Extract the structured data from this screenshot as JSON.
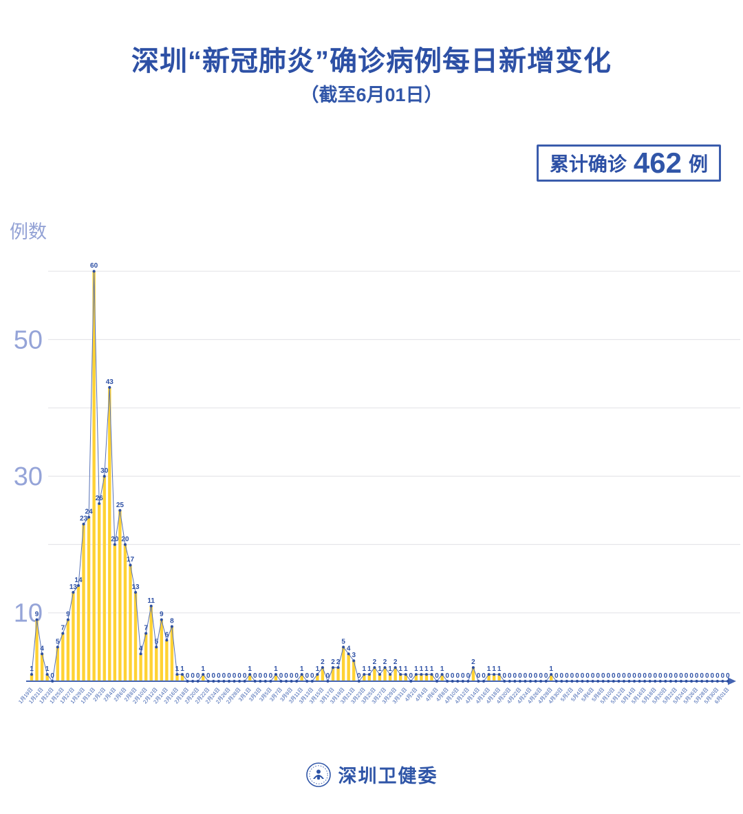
{
  "header": {
    "title": "深圳“新冠肺炎”确诊病例每日新增变化",
    "subtitle": "（截至6月01日）",
    "badge": {
      "label": "累计确诊",
      "value": "462",
      "unit": "例"
    }
  },
  "footer": {
    "brand": "深圳卫健委",
    "logo": "shenzhen-health-commission-emblem"
  },
  "colors": {
    "title_blue": "#2d50a5",
    "bar_yellow": "#ffd234",
    "line_blue": "#5570b5",
    "dot_blue": "#2d4fa0",
    "axis_blue": "#4464b2",
    "tick_label_blue": "#3b5fae",
    "y_label_periwinkle": "#95a4d8",
    "gridline_gray": "#e5e5e9"
  },
  "chart_data": {
    "type": "bar",
    "title": "深圳“新冠肺炎”确诊病例每日新增变化",
    "subtitle": "（截至6月01日）",
    "ylabel": "例数",
    "xlabel": "",
    "ylim": [
      0,
      62
    ],
    "grid": true,
    "gridlines": [
      10,
      20,
      30,
      40,
      50,
      60
    ],
    "yticks": [
      10,
      30,
      50
    ],
    "legend_position": "none",
    "cumulative_total": 462,
    "cumulative_total_label": "累计确诊 462 例",
    "points_per_x_tick": 2,
    "x_tick_labels": [
      "1月19日",
      "1月21日",
      "1月23日",
      "1月25日",
      "1月27日",
      "1月29日",
      "1月31日",
      "2月2日",
      "2月4日",
      "2月6日",
      "2月8日",
      "2月10日",
      "2月12日",
      "2月14日",
      "2月16日",
      "2月18日",
      "2月20日",
      "2月22日",
      "2月24日",
      "2月26日",
      "2月28日",
      "3月1日",
      "3月3日",
      "3月5日",
      "3月7日",
      "3月9日",
      "3月11日",
      "3月13日",
      "3月15日",
      "3月17日",
      "3月19日",
      "3月21日",
      "3月23日",
      "3月25日",
      "3月27日",
      "3月29日",
      "3月31日",
      "4月2日",
      "4月4日",
      "4月6日",
      "4月8日",
      "4月10日",
      "4月12日",
      "4月14日",
      "4月16日",
      "4月18日",
      "4月20日",
      "4月22日",
      "4月24日",
      "4月26日",
      "4月28日",
      "4月30日",
      "5月2日",
      "5月4日",
      "5月6日",
      "5月8日",
      "5月10日",
      "5月12日",
      "5月14日",
      "5月16日",
      "5月18日",
      "5月20日",
      "5月22日",
      "5月24日",
      "5月26日",
      "5月28日",
      "5月30日",
      "6月01日"
    ],
    "values": [
      1,
      9,
      4,
      1,
      0,
      5,
      7,
      9,
      13,
      14,
      23,
      24,
      60,
      26,
      30,
      43,
      20,
      25,
      20,
      17,
      13,
      4,
      7,
      11,
      5,
      9,
      6,
      8,
      1,
      1,
      0,
      0,
      0,
      1,
      0,
      0,
      0,
      0,
      0,
      0,
      0,
      0,
      1,
      0,
      0,
      0,
      0,
      1,
      0,
      0,
      0,
      0,
      1,
      0,
      0,
      1,
      2,
      0,
      2,
      2,
      5,
      4,
      3,
      0,
      1,
      1,
      2,
      1,
      2,
      1,
      2,
      1,
      1,
      0,
      1,
      1,
      1,
      1,
      0,
      1,
      0,
      0,
      0,
      0,
      0,
      2,
      0,
      0,
      1,
      1,
      1,
      0,
      0,
      0,
      0,
      0,
      0,
      0,
      0,
      0,
      1,
      0,
      0,
      0,
      0,
      0,
      0,
      0,
      0,
      0,
      0,
      0,
      0,
      0,
      0,
      0,
      0,
      0,
      0,
      0,
      0,
      0,
      0,
      0,
      0,
      0,
      0,
      0,
      0,
      0,
      0,
      0,
      0,
      0,
      0
    ]
  }
}
